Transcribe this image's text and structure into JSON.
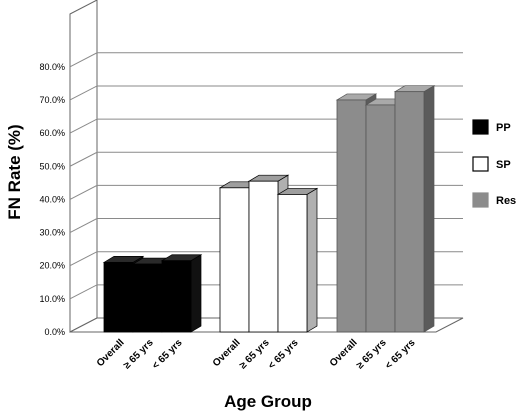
{
  "chart_data": {
    "type": "bar",
    "title": "",
    "xlabel": "Age Group",
    "ylabel": "FN Rate (%)",
    "ylim": [
      0,
      80
    ],
    "y_ticks": [
      "0.0%",
      "10.0%",
      "20.0%",
      "30.0%",
      "40.0%",
      "50.0%",
      "60.0%",
      "70.0%",
      "80.0%"
    ],
    "categories": [
      "Overall",
      "≥ 65 yrs",
      "< 65 yrs"
    ],
    "series": [
      {
        "name": "PP",
        "color": "#000000",
        "values": [
          21.0,
          20.5,
          21.5
        ]
      },
      {
        "name": "SP",
        "color": "#ffffff",
        "values": [
          43.5,
          45.5,
          41.5
        ]
      },
      {
        "name": "Res",
        "color": "#8c8c8c",
        "values": [
          70.0,
          68.5,
          72.5
        ]
      }
    ],
    "grid": true,
    "three_d": true,
    "legend_position": "right"
  }
}
